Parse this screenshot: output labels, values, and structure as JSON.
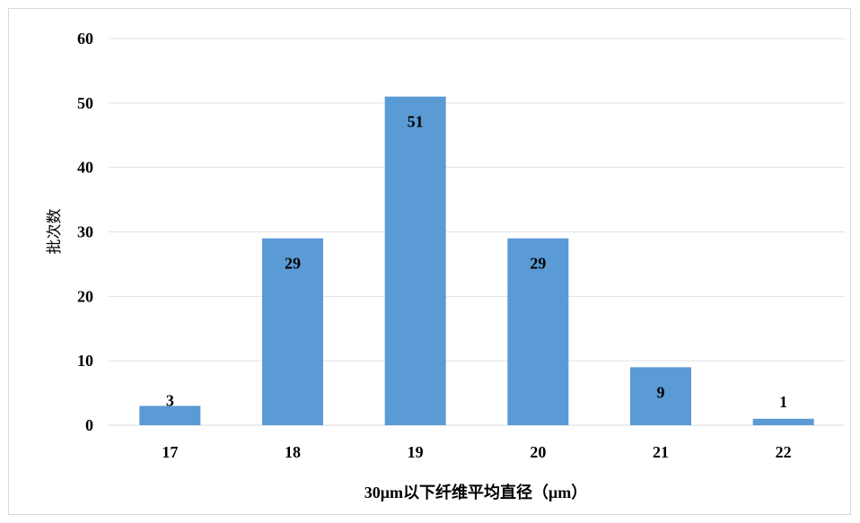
{
  "chart_data": {
    "type": "bar",
    "categories": [
      "17",
      "18",
      "19",
      "20",
      "21",
      "22"
    ],
    "values": [
      3,
      29,
      51,
      29,
      9,
      1
    ],
    "xlabel": "30μm以下纤维平均直径（μm）",
    "ylabel": "批次数",
    "ylim": [
      0,
      60
    ],
    "yticks": [
      0,
      10,
      20,
      30,
      40,
      50,
      60
    ],
    "bar_color": "#5b9bd5",
    "grid": true,
    "legend": "none"
  }
}
